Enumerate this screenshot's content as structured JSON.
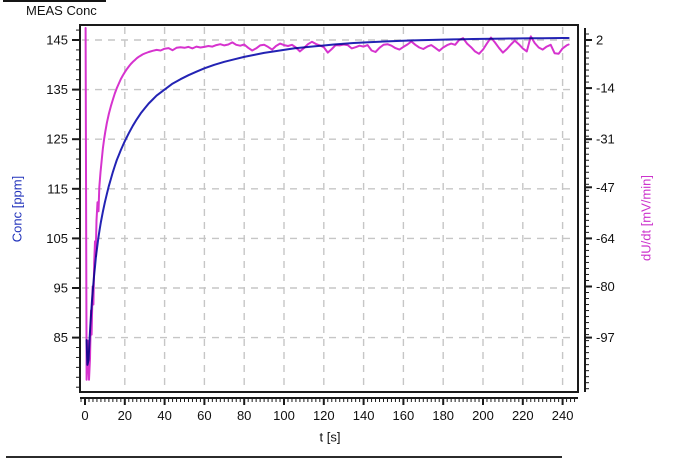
{
  "header": {
    "title": "MEAS Conc"
  },
  "chart_data": {
    "type": "line",
    "title": "MEAS Conc",
    "xlabel": "t [s]",
    "x_ticks": [
      0,
      20,
      40,
      60,
      80,
      100,
      120,
      140,
      160,
      180,
      200,
      220,
      240
    ],
    "x_range": [
      -2.5,
      247
    ],
    "grid": "dashed",
    "legend": "none",
    "left_axis": {
      "label": "Conc [ppm]",
      "color": "#2233bb",
      "ticks": [
        85,
        95,
        105,
        115,
        125,
        135,
        145
      ],
      "range": [
        74,
        148
      ]
    },
    "right_axis": {
      "label": "dU/dt [mV/min]",
      "color": "#cc33cc",
      "ticks": [
        2,
        -14,
        -31,
        -47,
        -64,
        -80,
        -97
      ],
      "range": [
        -115,
        7
      ]
    },
    "series": [
      {
        "name": "Conc",
        "axis": "left",
        "color": "#2323b4",
        "points": [
          [
            0.8,
            84.5
          ],
          [
            1.2,
            79.5
          ],
          [
            1.8,
            80.5
          ],
          [
            2.2,
            84
          ],
          [
            2.6,
            87
          ],
          [
            3,
            89.5
          ],
          [
            3.5,
            92.5
          ],
          [
            4,
            95
          ],
          [
            4.5,
            97.3
          ],
          [
            5,
            99.3
          ],
          [
            5.5,
            101.2
          ],
          [
            6,
            102.8
          ],
          [
            6.5,
            104.4
          ],
          [
            7,
            105.8
          ],
          [
            7.5,
            107.1
          ],
          [
            8,
            108.3
          ],
          [
            9,
            110.4
          ],
          [
            10,
            112.3
          ],
          [
            11,
            114
          ],
          [
            12,
            115.6
          ],
          [
            13,
            117
          ],
          [
            14,
            118.4
          ],
          [
            15,
            119.6
          ],
          [
            16,
            120.8
          ],
          [
            17,
            121.8
          ],
          [
            18,
            122.8
          ],
          [
            19,
            123.7
          ],
          [
            20,
            124.6
          ],
          [
            22,
            126.2
          ],
          [
            24,
            127.7
          ],
          [
            26,
            129
          ],
          [
            28,
            130.2
          ],
          [
            30,
            131.2
          ],
          [
            32,
            132.2
          ],
          [
            34,
            133
          ],
          [
            36,
            133.8
          ],
          [
            38,
            134.4
          ],
          [
            40,
            135
          ],
          [
            44,
            136.2
          ],
          [
            48,
            137.1
          ],
          [
            52,
            137.9
          ],
          [
            56,
            138.6
          ],
          [
            60,
            139.3
          ],
          [
            65,
            140
          ],
          [
            70,
            140.6
          ],
          [
            75,
            141.1
          ],
          [
            80,
            141.6
          ],
          [
            85,
            142
          ],
          [
            90,
            142.4
          ],
          [
            95,
            142.7
          ],
          [
            100,
            143
          ],
          [
            105,
            143.3
          ],
          [
            110,
            143.5
          ],
          [
            115,
            143.7
          ],
          [
            120,
            143.9
          ],
          [
            125,
            144.1
          ],
          [
            130,
            144.25
          ],
          [
            135,
            144.4
          ],
          [
            140,
            144.5
          ],
          [
            145,
            144.6
          ],
          [
            150,
            144.7
          ],
          [
            155,
            144.78
          ],
          [
            160,
            144.85
          ],
          [
            165,
            144.92
          ],
          [
            170,
            144.98
          ],
          [
            175,
            145.03
          ],
          [
            180,
            145.08
          ],
          [
            185,
            145.12
          ],
          [
            190,
            145.16
          ],
          [
            195,
            145.2
          ],
          [
            200,
            145.23
          ],
          [
            205,
            145.26
          ],
          [
            210,
            145.28
          ],
          [
            215,
            145.3
          ],
          [
            220,
            145.32
          ],
          [
            225,
            145.34
          ],
          [
            230,
            145.36
          ],
          [
            235,
            145.38
          ],
          [
            240,
            145.4
          ],
          [
            243,
            145.4
          ]
        ]
      },
      {
        "name": "dU/dt",
        "axis": "right",
        "color": "#d633ce",
        "points": [
          [
            0.3,
            6
          ],
          [
            0.8,
            -111
          ],
          [
            1.5,
            -98
          ],
          [
            2,
            -111
          ],
          [
            2.5,
            -104
          ],
          [
            3,
            -88
          ],
          [
            3.3,
            -96
          ],
          [
            3.8,
            -80
          ],
          [
            4.2,
            -86
          ],
          [
            4.6,
            -72
          ],
          [
            5,
            -65
          ],
          [
            5.4,
            -70
          ],
          [
            5.8,
            -58
          ],
          [
            6.3,
            -52
          ],
          [
            6.8,
            -55
          ],
          [
            7.2,
            -47
          ],
          [
            7.8,
            -42
          ],
          [
            8.4,
            -38
          ],
          [
            9,
            -34
          ],
          [
            9.6,
            -31
          ],
          [
            10.2,
            -28.5
          ],
          [
            11,
            -25.5
          ],
          [
            12,
            -22.5
          ],
          [
            13,
            -20
          ],
          [
            14,
            -17.8
          ],
          [
            15,
            -15.8
          ],
          [
            16,
            -14
          ],
          [
            17,
            -12.5
          ],
          [
            18,
            -11
          ],
          [
            19,
            -9.8
          ],
          [
            20,
            -8.7
          ],
          [
            21,
            -7.7
          ],
          [
            22,
            -6.8
          ],
          [
            23,
            -6
          ],
          [
            24,
            -5.3
          ],
          [
            25,
            -4.7
          ],
          [
            26,
            -4.1
          ],
          [
            27,
            -3.6
          ],
          [
            28,
            -3.2
          ],
          [
            29,
            -2.8
          ],
          [
            30,
            -2.5
          ],
          [
            32,
            -2
          ],
          [
            34,
            -1.6
          ],
          [
            36,
            -1.3
          ],
          [
            38,
            -1.5
          ],
          [
            40,
            -0.9
          ],
          [
            42,
            -0.7
          ],
          [
            44,
            -1.4
          ],
          [
            46,
            -0.6
          ],
          [
            48,
            -0.4
          ],
          [
            50,
            -0.6
          ],
          [
            52,
            -0.3
          ],
          [
            54,
            -0.8
          ],
          [
            56,
            -0.2
          ],
          [
            58,
            -0.5
          ],
          [
            60,
            -0.3
          ],
          [
            62,
            0
          ],
          [
            64,
            -0.2
          ],
          [
            66,
            0.3
          ],
          [
            68,
            0.6
          ],
          [
            70,
            0.2
          ],
          [
            72,
            0.5
          ],
          [
            74,
            1.2
          ],
          [
            76,
            0.4
          ],
          [
            78,
            0.1
          ],
          [
            80,
            0.5
          ],
          [
            82,
            -0.6
          ],
          [
            84,
            -1.5
          ],
          [
            86,
            -0.8
          ],
          [
            88,
            0.2
          ],
          [
            90,
            0.4
          ],
          [
            92,
            -0.3
          ],
          [
            94,
            -1.2
          ],
          [
            96,
            0
          ],
          [
            98,
            0.8
          ],
          [
            100,
            0.3
          ],
          [
            102,
            0
          ],
          [
            104,
            0.4
          ],
          [
            106,
            -0.5
          ],
          [
            108,
            -1.8
          ],
          [
            110,
            -0.7
          ],
          [
            112,
            0.6
          ],
          [
            114,
            1.4
          ],
          [
            116,
            0.7
          ],
          [
            118,
            0.2
          ],
          [
            120,
            -0.4
          ],
          [
            122,
            -2.2
          ],
          [
            124,
            -1
          ],
          [
            126,
            0.3
          ],
          [
            128,
            0.2
          ],
          [
            130,
            0.5
          ],
          [
            132,
            0.3
          ],
          [
            134,
            -0.8
          ],
          [
            136,
            -0.4
          ],
          [
            138,
            0.1
          ],
          [
            140,
            -0.2
          ],
          [
            142,
            0.3
          ],
          [
            144,
            -1.5
          ],
          [
            146,
            -2
          ],
          [
            148,
            -0.6
          ],
          [
            150,
            0.4
          ],
          [
            152,
            0.6
          ],
          [
            154,
            0.1
          ],
          [
            156,
            -0.7
          ],
          [
            158,
            -1.2
          ],
          [
            160,
            -0.3
          ],
          [
            162,
            0.5
          ],
          [
            164,
            1.5
          ],
          [
            166,
            0.4
          ],
          [
            168,
            -0.5
          ],
          [
            170,
            -1
          ],
          [
            172,
            -0.2
          ],
          [
            174,
            0.3
          ],
          [
            176,
            -0.6
          ],
          [
            178,
            -1.6
          ],
          [
            180,
            -0.5
          ],
          [
            182,
            0.3
          ],
          [
            184,
            0.8
          ],
          [
            186,
            0.4
          ],
          [
            188,
            2
          ],
          [
            190,
            2.6
          ],
          [
            192,
            0.8
          ],
          [
            194,
            -0.4
          ],
          [
            196,
            -1.8
          ],
          [
            198,
            -2.6
          ],
          [
            200,
            -1.2
          ],
          [
            202,
            0.9
          ],
          [
            204,
            2.8
          ],
          [
            206,
            1.2
          ],
          [
            208,
            -0.6
          ],
          [
            210,
            -2.2
          ],
          [
            212,
            -1
          ],
          [
            214,
            0.5
          ],
          [
            216,
            1.8
          ],
          [
            218,
            0.6
          ],
          [
            220,
            -0.8
          ],
          [
            222,
            -1.8
          ],
          [
            224,
            3.2
          ],
          [
            226,
            1
          ],
          [
            228,
            -0.5
          ],
          [
            230,
            -1.2
          ],
          [
            232,
            -0.2
          ],
          [
            234,
            0.4
          ],
          [
            236,
            -2.4
          ],
          [
            238,
            -2.6
          ],
          [
            240,
            -0.8
          ],
          [
            242,
            0.2
          ],
          [
            243,
            0.5
          ]
        ]
      }
    ]
  }
}
